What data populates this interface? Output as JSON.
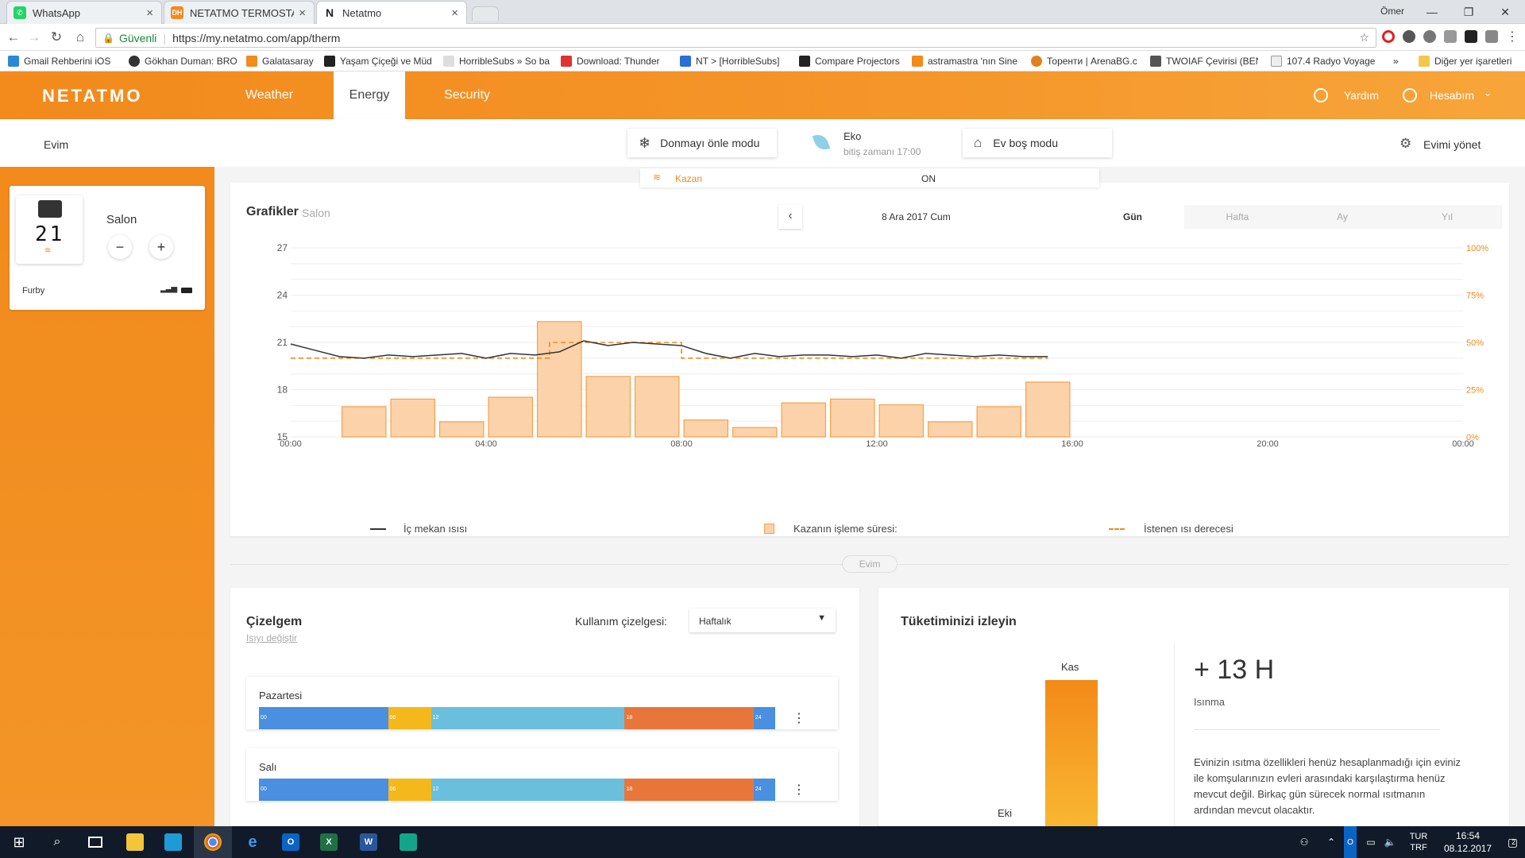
{
  "browser": {
    "tabs": [
      {
        "title": "WhatsApp",
        "active": false
      },
      {
        "title": "NETATMO TERMOSTAT P",
        "active": false
      },
      {
        "title": "Netatmo",
        "active": true
      }
    ],
    "user": "Ömer",
    "secure_label": "Güvenli",
    "url": "https://my.netatmo.com/app/therm",
    "bookmarks": [
      "Gmail Rehberini iOS",
      "Gökhan Duman: BRO",
      "Galatasaray",
      "Yaşam Çiçeği ve Müd",
      "HorribleSubs » So ba",
      "Download: Thunder",
      "NT > [HorribleSubs]",
      "Compare Projectors",
      "astramastra 'nın Sine",
      "Торенти | ArenaBG.c",
      "TWOIAF Çevirisi (BEN",
      "107.4 Radyo Voyage"
    ],
    "overflow": "»",
    "other_bookmarks": "Diğer yer işaretleri"
  },
  "app": {
    "logo": "NETATMO",
    "nav": [
      {
        "label": "Weather",
        "active": false
      },
      {
        "label": "Energy",
        "active": true
      },
      {
        "label": "Security",
        "active": false
      }
    ],
    "help": "Yardım",
    "account": "Hesabım"
  },
  "subheader": {
    "home": "Evim",
    "frost_mode": "Donmayı önle modu",
    "eco_title": "Eko",
    "eco_sub": "bitiş zamanı 17:00",
    "away_mode": "Ev boş modu",
    "manage": "Evimi yönet",
    "boiler_label": "Kazan",
    "boiler_state": "ON"
  },
  "thermostat": {
    "display": "21",
    "room": "Salon",
    "name": "Furby",
    "minus": "−",
    "plus": "+"
  },
  "graph": {
    "title": "Grafikler",
    "room": "Salon",
    "date": "8 Ara 2017 Cum",
    "ranges": [
      {
        "label": "Gün",
        "active": true
      },
      {
        "label": "Hafta",
        "active": false
      },
      {
        "label": "Ay",
        "active": false
      },
      {
        "label": "Yıl",
        "active": false
      }
    ],
    "legend": {
      "indoor": "İç mekan ısısı",
      "boiler": "Kazanın işleme süresi:",
      "setpoint": "İstenen ısı derecesi"
    },
    "divider_label": "Evim"
  },
  "chart_data": {
    "type": "bar",
    "x_ticks": [
      "00:00",
      "04:00",
      "08:00",
      "12:00",
      "16:00",
      "20:00",
      "00:00"
    ],
    "y_left_ticks": [
      "27",
      "24",
      "21",
      "18",
      "15"
    ],
    "y_right_ticks": [
      "100%",
      "75%",
      "50%",
      "25%",
      "0%"
    ],
    "ylim_left": [
      15,
      27
    ],
    "ylim_right": [
      0,
      100
    ],
    "grid": true,
    "series": [
      {
        "name": "Kazanın işleme süresi:",
        "type": "bar",
        "color": "#f6a24a",
        "x_hours": [
          1,
          2,
          3,
          4,
          5,
          6,
          7,
          8,
          9,
          10,
          11,
          12,
          13,
          14,
          15
        ],
        "values": [
          16,
          20,
          8,
          21,
          61,
          32,
          32,
          9,
          5,
          18,
          20,
          17,
          8,
          16,
          29
        ]
      },
      {
        "name": "İç mekan ısısı",
        "type": "line",
        "color": "#333333",
        "x_hours": [
          0,
          0.5,
          1,
          1.5,
          2,
          2.5,
          3,
          3.5,
          4,
          4.5,
          5,
          5.5,
          6,
          6.5,
          7,
          7.5,
          8,
          8.5,
          9,
          9.5,
          10,
          10.5,
          11,
          11.5,
          12,
          12.5,
          13,
          13.5,
          14,
          14.5,
          15,
          15.5
        ],
        "values": [
          20.9,
          20.5,
          20.1,
          20.0,
          20.2,
          20.1,
          20.2,
          20.3,
          20.0,
          20.3,
          20.2,
          20.4,
          21.1,
          20.8,
          21.0,
          20.9,
          20.8,
          20.3,
          20.0,
          20.3,
          20.1,
          20.2,
          20.2,
          20.1,
          20.2,
          20.0,
          20.3,
          20.2,
          20.1,
          20.2,
          20.1,
          20.1
        ]
      },
      {
        "name": "İstenen ısı derecesi",
        "type": "step",
        "color": "#f28a1c",
        "points": [
          [
            0,
            20
          ],
          [
            5.3,
            20
          ],
          [
            5.3,
            21
          ],
          [
            8,
            21
          ],
          [
            8,
            20
          ],
          [
            15.5,
            20
          ]
        ]
      }
    ]
  },
  "schedule": {
    "title": "Çizelgem",
    "change_heat": "Isıyı değiştir",
    "select_label": "Kullanım çizelgesi:",
    "select_value": "Haftalık",
    "days": [
      {
        "name": "Pazartesi"
      },
      {
        "name": "Salı"
      }
    ],
    "segments": [
      {
        "from": 0,
        "to": 6,
        "color": "#4a8fe0",
        "label": "00"
      },
      {
        "from": 6,
        "to": 8,
        "color": "#f5b81c",
        "label": "06"
      },
      {
        "from": 8,
        "to": 17,
        "color": "#6ac0dc",
        "label": "12"
      },
      {
        "from": 17,
        "to": 23,
        "color": "#e8763a",
        "label": "18"
      },
      {
        "from": 23,
        "to": 24,
        "color": "#4a8fe0",
        "label": "24"
      }
    ]
  },
  "consumption": {
    "title": "Tüketiminizi izleyin",
    "bar_label_top": "Kas",
    "bar_label_bottom": "Eki",
    "value": "+ 13 H",
    "value_caption": "Isınma",
    "description": "Evinizin ısıtma özellikleri henüz hesaplanmadığı için eviniz ile komşularınızın evleri arasındaki karşılaştırma henüz mevcut değil. Birkaç gün sürecek normal ısıtmanın ardından mevcut olacaktır."
  },
  "taskbar": {
    "lang_top": "TUR",
    "lang_bottom": "TRF",
    "time": "16:54",
    "date": "08.12.2017",
    "notif": "2"
  }
}
